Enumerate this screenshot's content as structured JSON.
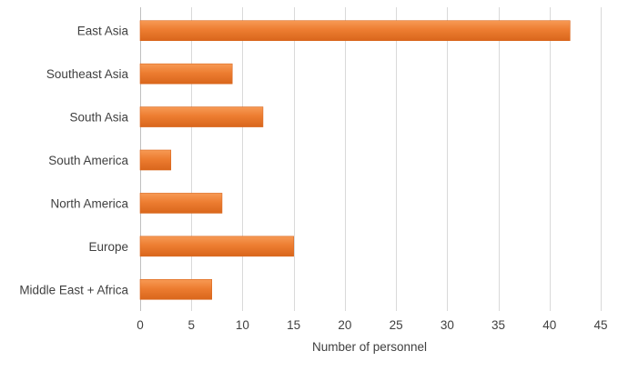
{
  "chart_data": {
    "type": "bar",
    "orientation": "horizontal",
    "categories": [
      "East Asia",
      "Southeast Asia",
      "South Asia",
      "South America",
      "North America",
      "Europe",
      "Middle East + Africa"
    ],
    "values": [
      42,
      9,
      12,
      3,
      8,
      15,
      7
    ],
    "title": "",
    "xlabel": "Number of personnel",
    "ylabel": "",
    "xlim": [
      0,
      45
    ],
    "xticks": [
      0,
      5,
      10,
      15,
      20,
      25,
      30,
      35,
      40,
      45
    ],
    "grid": "vertical",
    "legend": "none",
    "bar_color": "#ED7D31",
    "bar_color_light": "#F79A55",
    "bar_color_dark": "#D9661C"
  }
}
